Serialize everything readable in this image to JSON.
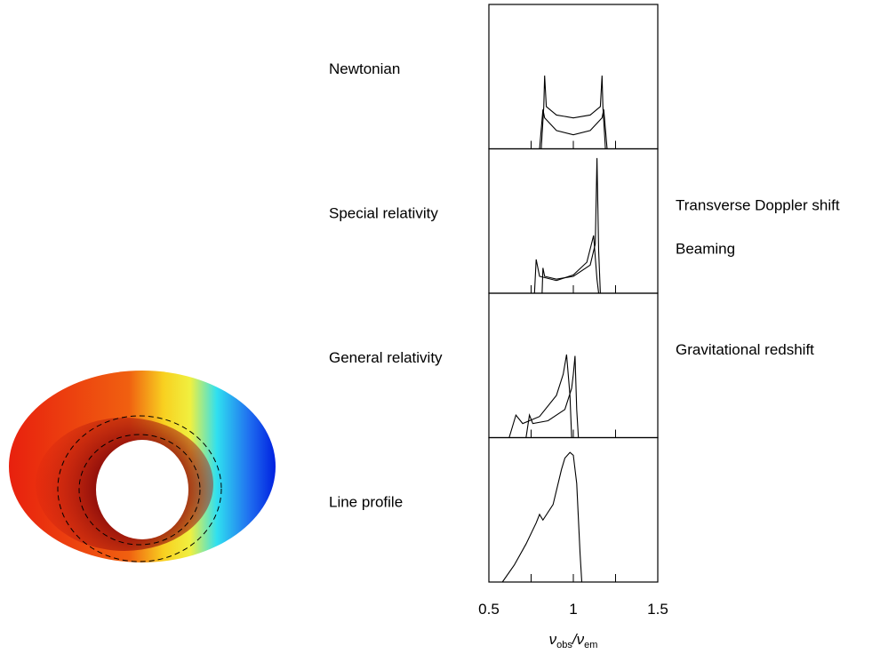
{
  "chart_data": [
    {
      "type": "line",
      "label": "Newtonian",
      "xlim": [
        0.5,
        1.5
      ],
      "ylim": [
        0,
        1
      ],
      "xminor": [
        0.75,
        1,
        1.25
      ],
      "series": [
        {
          "color": "#000000",
          "x": [
            0.81,
            0.825,
            0.83,
            0.84,
            0.9,
            1.0,
            1.1,
            1.16,
            1.17,
            1.175,
            1.19
          ],
          "values": [
            0,
            0.3,
            0.52,
            0.3,
            0.24,
            0.22,
            0.24,
            0.3,
            0.52,
            0.3,
            0
          ]
        },
        {
          "color": "#000000",
          "x": [
            0.8,
            0.82,
            0.83,
            0.9,
            1.0,
            1.1,
            1.17,
            1.18,
            1.2
          ],
          "values": [
            0,
            0.28,
            0.22,
            0.13,
            0.1,
            0.13,
            0.22,
            0.28,
            0
          ]
        }
      ]
    },
    {
      "type": "line",
      "label": "Special relativity",
      "annotations": [
        "Transverse Doppler shift",
        "Beaming"
      ],
      "xlim": [
        0.5,
        1.5
      ],
      "ylim": [
        0,
        1
      ],
      "xminor": [
        0.75,
        1,
        1.25
      ],
      "series": [
        {
          "color": "#000000",
          "x": [
            0.815,
            0.82,
            0.83,
            0.9,
            1.0,
            1.1,
            1.13,
            1.14,
            1.15,
            1.16
          ],
          "values": [
            0,
            0.18,
            0.12,
            0.1,
            0.12,
            0.2,
            0.35,
            0.96,
            0.3,
            0
          ]
        },
        {
          "color": "#000000",
          "x": [
            0.77,
            0.78,
            0.8,
            0.9,
            1.0,
            1.08,
            1.12,
            1.14,
            1.15
          ],
          "values": [
            0,
            0.24,
            0.12,
            0.09,
            0.13,
            0.22,
            0.41,
            0.1,
            0
          ]
        }
      ]
    },
    {
      "type": "line",
      "label": "General relativity",
      "annotations": [
        "Gravitational redshift"
      ],
      "xlim": [
        0.5,
        1.5
      ],
      "ylim": [
        0,
        1
      ],
      "xminor": [
        0.75,
        1,
        1.25
      ],
      "series": [
        {
          "color": "#000000",
          "x": [
            0.72,
            0.74,
            0.76,
            0.85,
            0.95,
            0.99,
            1.0,
            1.01,
            1.02,
            1.03
          ],
          "values": [
            0,
            0.16,
            0.1,
            0.12,
            0.2,
            0.35,
            0.45,
            0.58,
            0.2,
            0
          ]
        },
        {
          "color": "#000000",
          "x": [
            0.62,
            0.66,
            0.7,
            0.8,
            0.9,
            0.94,
            0.96,
            0.98,
            0.99
          ],
          "values": [
            0,
            0.16,
            0.1,
            0.15,
            0.3,
            0.45,
            0.59,
            0.3,
            0
          ]
        }
      ]
    },
    {
      "type": "line",
      "label": "Line profile",
      "xlim": [
        0.5,
        1.5
      ],
      "ylim": [
        0,
        1
      ],
      "xminor": [
        0.75,
        1.25
      ],
      "xticks": [
        0.5,
        1,
        1.5
      ],
      "xlabel_parts": [
        "ν",
        "obs",
        "/ν",
        "em"
      ],
      "series": [
        {
          "color": "#000000",
          "x": [
            0.58,
            0.65,
            0.72,
            0.78,
            0.8,
            0.82,
            0.88,
            0.93,
            0.95,
            0.98,
            1.0,
            1.02,
            1.04,
            1.05
          ],
          "values": [
            0,
            0.12,
            0.27,
            0.42,
            0.48,
            0.44,
            0.55,
            0.8,
            0.88,
            0.92,
            0.9,
            0.7,
            0.2,
            0
          ]
        }
      ]
    }
  ]
}
